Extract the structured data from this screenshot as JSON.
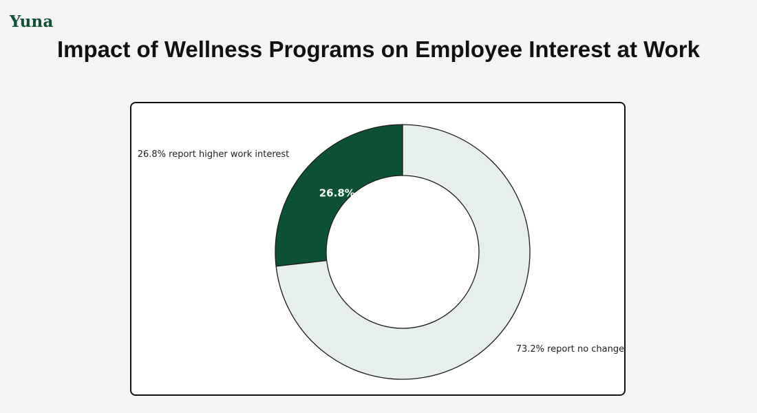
{
  "brand": {
    "logo_text": "Yuna"
  },
  "colors": {
    "background": "#f4f4f4",
    "card": "#ffffff",
    "accent": "#0e5235",
    "light_slice": "#e6efea"
  },
  "chart_data": {
    "type": "pie",
    "variant": "donut",
    "title": "Impact of Wellness Programs on Employee Interest at Work",
    "slices": [
      {
        "label": "26.8% report higher work interest",
        "value": 26.8,
        "pct_label": "26.8%",
        "color": "#0e5235"
      },
      {
        "label": "73.2% report no change",
        "value": 73.2,
        "pct_label": "",
        "color": "#e6efea"
      }
    ],
    "start": "top",
    "direction": "counterclockwise"
  }
}
